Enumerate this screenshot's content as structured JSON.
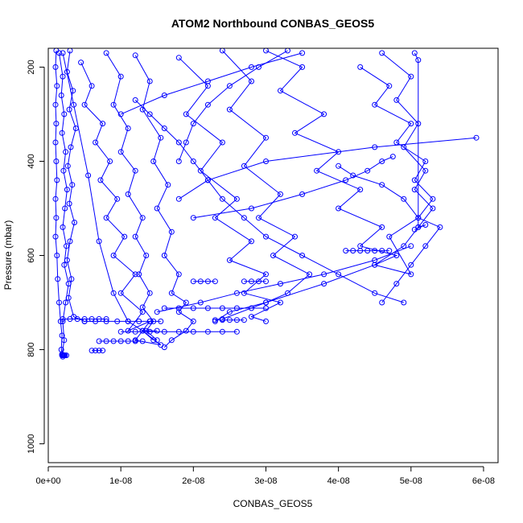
{
  "chart_data": {
    "type": "scatter",
    "title": "ATOM2 Northbound CONBAS_GEOS5",
    "xlabel": "CONBAS_GEOS5",
    "ylabel": "Pressure (mbar)",
    "xlim": [
      0,
      6.2e-08
    ],
    "ylim": [
      1040,
      160
    ],
    "y_reversed": true,
    "x_ticks": [
      0,
      1e-08,
      2e-08,
      3e-08,
      4e-08,
      5e-08,
      6e-08
    ],
    "x_tick_labels": [
      "0e+00",
      "1e-08",
      "2e-08",
      "3e-08",
      "4e-08",
      "5e-08",
      "6e-08"
    ],
    "y_ticks": [
      200,
      400,
      600,
      800,
      1000
    ],
    "y_tick_labels": [
      "200",
      "400",
      "600",
      "800",
      "1000"
    ],
    "marker": "open-circle",
    "color": "#0000ff",
    "grid": false,
    "series": [
      {
        "x": [
          1.1e-09,
          1e-09,
          1.2e-09,
          1e-09,
          1.1e-09,
          1e-09,
          1.1e-09,
          1.2e-09,
          1e-09,
          1.1e-09,
          1e-09,
          1.2e-09,
          1.3e-09,
          1.5e-09,
          1.7e-09,
          1.9e-09,
          1.8e-09,
          2e-09
        ],
        "y": [
          165,
          200,
          240,
          280,
          320,
          360,
          400,
          440,
          480,
          520,
          560,
          600,
          650,
          700,
          740,
          770,
          800,
          815
        ]
      },
      {
        "x": [
          1.5e-09,
          2e-09,
          1.8e-09,
          2.2e-09,
          1.9e-09,
          2.4e-09,
          2.1e-09,
          2.6e-09,
          2.3e-09,
          2e-09,
          2.5e-09,
          2.2e-09,
          2.8e-09,
          2.4e-09,
          2e-09,
          2.2e-09,
          1.9e-09
        ],
        "y": [
          170,
          220,
          260,
          300,
          340,
          380,
          420,
          460,
          500,
          540,
          580,
          620,
          660,
          700,
          740,
          780,
          810
        ]
      },
      {
        "x": [
          3e-09,
          2.6e-09,
          3.4e-09,
          2.9e-09,
          3.8e-09,
          3.1e-09,
          2.7e-09,
          3.3e-09,
          2.9e-09,
          3.6e-09,
          3e-09,
          2.6e-09,
          3.2e-09,
          2.8e-09,
          3.5e-09,
          5e-09
        ],
        "y": [
          165,
          210,
          250,
          290,
          330,
          370,
          410,
          450,
          490,
          530,
          570,
          610,
          650,
          690,
          730,
          740
        ]
      },
      {
        "x": [
          2e-09,
          3.5e-09,
          5.5e-09,
          7e-09,
          9e-09,
          1.1e-08,
          1.3e-08,
          1.5e-08
        ],
        "y": [
          170,
          280,
          430,
          570,
          680,
          740,
          760,
          760
        ]
      },
      {
        "x": [
          4.5e-09,
          6e-09,
          5e-09,
          7.5e-09,
          6.5e-09,
          8.5e-09,
          7.2e-09,
          9.5e-09,
          8e-09,
          1.05e-08,
          9e-09,
          1.2e-08,
          1e-08,
          1.3e-08,
          1.1e-08,
          1.4e-08,
          1.2e-08,
          1.55e-08,
          1.3e-08,
          1.45e-08
        ],
        "y": [
          190,
          240,
          280,
          320,
          360,
          400,
          440,
          480,
          520,
          560,
          600,
          640,
          680,
          720,
          760,
          740,
          780,
          790,
          760,
          780
        ]
      },
      {
        "x": [
          8e-09,
          1e-08,
          9e-09,
          1.1e-08,
          1e-08,
          1.2e-08,
          1.1e-08,
          1.3e-08,
          1.2e-08,
          1.35e-08,
          1.25e-08,
          1.4e-08,
          1.3e-08,
          1.45e-08,
          1.35e-08,
          1.5e-08
        ],
        "y": [
          170,
          220,
          280,
          330,
          380,
          420,
          470,
          520,
          560,
          600,
          640,
          680,
          710,
          740,
          760,
          780
        ]
      },
      {
        "x": [
          1.2e-08,
          1.4e-08,
          1.3e-08,
          1.55e-08,
          1.45e-08,
          1.65e-08,
          1.5e-08,
          1.7e-08,
          1.6e-08,
          1.8e-08,
          1.7e-08,
          1.9e-08,
          1.8e-08,
          2e-08,
          1.9e-08,
          1.7e-08,
          1.6e-08
        ],
        "y": [
          175,
          230,
          290,
          350,
          400,
          450,
          500,
          550,
          600,
          640,
          680,
          700,
          720,
          740,
          760,
          780,
          795
        ]
      },
      {
        "x": [
          1.8e-08,
          2.2e-08,
          1.9e-08,
          2.4e-08,
          2.1e-08,
          2.6e-08,
          2.3e-08,
          2.8e-08,
          2.5e-08,
          3e-08,
          2.7e-08,
          3.2e-08,
          2.8e-08,
          3e-08
        ],
        "y": [
          180,
          240,
          300,
          360,
          420,
          480,
          520,
          570,
          610,
          640,
          680,
          700,
          730,
          740
        ]
      },
      {
        "x": [
          2.4e-08,
          2.8e-08,
          2.5e-08,
          3e-08,
          2.7e-08,
          3.2e-08,
          2.9e-08,
          3.4e-08,
          3.1e-08,
          3.6e-08,
          3.3e-08,
          3e-08,
          2.5e-08,
          2.3e-08
        ],
        "y": [
          165,
          230,
          290,
          350,
          410,
          470,
          520,
          560,
          600,
          640,
          680,
          700,
          720,
          740
        ]
      },
      {
        "x": [
          3e-08,
          3.5e-08,
          3.2e-08,
          3.8e-08,
          3.4e-08,
          4e-08,
          3.7e-08,
          4.3e-08,
          4e-08,
          4.6e-08,
          4.3e-08,
          4.8e-08,
          4.5e-08,
          5e-08,
          4.7e-08,
          5.1e-08,
          4.9e-08,
          4.6e-08,
          4.2e-08,
          4e-08
        ],
        "y": [
          165,
          200,
          250,
          300,
          340,
          380,
          420,
          460,
          500,
          540,
          580,
          600,
          620,
          640,
          560,
          520,
          480,
          450,
          430,
          410
        ]
      },
      {
        "x": [
          4.3e-08,
          4.7e-08,
          4.5e-08,
          5e-08,
          4.8e-08,
          5.2e-08,
          5.05e-08,
          5.3e-08,
          5.1e-08,
          5.4e-08,
          5.2e-08,
          5e-08,
          4.8e-08,
          4.6e-08
        ],
        "y": [
          200,
          240,
          280,
          320,
          360,
          400,
          440,
          480,
          520,
          540,
          580,
          620,
          660,
          700
        ]
      },
      {
        "x": [
          4.6e-08,
          5e-08,
          4.8e-08,
          5.1e-08,
          4.9e-08,
          5.2e-08,
          5.05e-08,
          5.3e-08,
          5.1e-08,
          4.9e-08,
          4.5e-08,
          3.8e-08,
          3e-08,
          2.4e-08
        ],
        "y": [
          170,
          220,
          270,
          320,
          370,
          420,
          460,
          500,
          540,
          580,
          620,
          660,
          700,
          735
        ]
      },
      {
        "x": [
          5.9e-08,
          4.5e-08,
          3e-08,
          2.2e-08,
          1.8e-08
        ],
        "y": [
          350,
          370,
          400,
          440,
          480
        ]
      },
      {
        "x": [
          2e-08,
          2.8e-08,
          3.5e-08,
          4.1e-08,
          4.4e-08,
          4.6e-08,
          4.75e-08
        ],
        "y": [
          520,
          500,
          470,
          440,
          420,
          400,
          390
        ]
      },
      {
        "x": [
          1.5e-08,
          2.1e-08,
          2.6e-08,
          3.2e-08,
          3.8e-08,
          4.5e-08,
          5e-08
        ],
        "y": [
          720,
          700,
          680,
          660,
          640,
          610,
          580
        ]
      },
      {
        "x": [
          1.2e-08,
          1.4e-08,
          1.6e-08,
          1.8e-08,
          2e-08,
          2.2e-08,
          2.4e-08,
          2.7e-08,
          3e-08,
          3.5e-08,
          4e-08,
          4.5e-08,
          4.9e-08
        ],
        "y": [
          270,
          300,
          330,
          360,
          400,
          440,
          480,
          520,
          560,
          600,
          640,
          680,
          700
        ]
      },
      {
        "x": [
          3.3e-08,
          2.9e-08,
          2.5e-08,
          2.2e-08,
          2e-08,
          1.9e-08,
          1.8e-08
        ],
        "y": [
          165,
          200,
          240,
          280,
          320,
          360,
          400
        ]
      },
      {
        "x": [
          1e-08,
          1.6e-08,
          2.2e-08,
          2.8e-08,
          3.5e-08
        ],
        "y": [
          300,
          260,
          230,
          200,
          170
        ]
      },
      {
        "x": [
          5e-09,
          6.5e-09,
          8e-09,
          9.5e-09,
          1.1e-08,
          1.25e-08,
          1.4e-08,
          1.55e-08
        ],
        "y": [
          740,
          740,
          740,
          740,
          740,
          740,
          740,
          740
        ]
      },
      {
        "x": [
          2e-09,
          3e-09,
          4e-09,
          5e-09,
          6e-09,
          7e-09,
          8e-09
        ],
        "y": [
          735,
          735,
          735,
          735,
          735,
          735,
          735
        ]
      },
      {
        "x": [
          7e-09,
          8e-09,
          9e-09,
          1e-08,
          1.1e-08,
          1.2e-08,
          1.3e-08
        ],
        "y": [
          782,
          782,
          782,
          782,
          782,
          782,
          782
        ]
      },
      {
        "x": [
          1e-08,
          1.2e-08,
          1.4e-08,
          1.6e-08,
          1.8e-08,
          2e-08,
          2.2e-08,
          2.4e-08,
          2.6e-08
        ],
        "y": [
          762,
          762,
          762,
          762,
          762,
          762,
          762,
          762,
          762
        ]
      },
      {
        "x": [
          1.6e-08,
          1.8e-08,
          2e-08,
          2.2e-08,
          2.4e-08,
          2.6e-08,
          2.8e-08,
          3e-08
        ],
        "y": [
          712,
          712,
          712,
          712,
          712,
          712,
          712,
          712
        ]
      },
      {
        "x": [
          2e-08,
          2.1e-08,
          2.2e-08,
          2.3e-08
        ],
        "y": [
          655,
          655,
          655,
          655
        ]
      },
      {
        "x": [
          2.7e-08,
          2.8e-08,
          2.9e-08,
          3e-08
        ],
        "y": [
          655,
          655,
          655,
          655
        ]
      },
      {
        "x": [
          2.3e-08,
          2.4e-08,
          2.5e-08,
          2.6e-08,
          2.7e-08
        ],
        "y": [
          737,
          737,
          737,
          737,
          737
        ]
      },
      {
        "x": [
          4.1e-08,
          4.2e-08,
          4.3e-08,
          4.4e-08,
          4.5e-08,
          4.6e-08,
          4.7e-08
        ],
        "y": [
          590,
          590,
          590,
          590,
          590,
          590,
          590
        ]
      },
      {
        "x": [
          6e-09,
          6.5e-09,
          7e-09,
          7.5e-09
        ],
        "y": [
          802,
          802,
          802,
          802
        ]
      },
      {
        "x": [
          1.9e-09,
          2e-09,
          2.1e-09,
          2.2e-09,
          2.3e-09,
          2.5e-09
        ],
        "y": [
          812,
          812,
          812,
          812,
          812,
          812
        ]
      },
      {
        "x": [
          5.05e-08,
          5.1e-08,
          5.1e-08,
          5.2e-08,
          5.05e-08
        ],
        "y": [
          170,
          185,
          540,
          535,
          545
        ]
      }
    ]
  }
}
